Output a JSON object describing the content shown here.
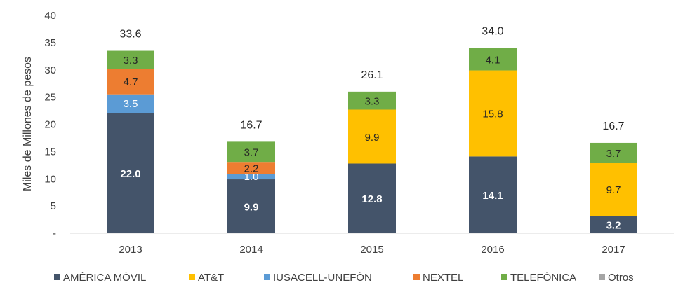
{
  "chart_data": {
    "type": "bar",
    "stacked": true,
    "ylabel": "Miles de Millones de pesos",
    "ylim": [
      0,
      40
    ],
    "yticks": [
      0,
      5,
      10,
      15,
      20,
      25,
      30,
      35,
      40
    ],
    "ytick_labels": [
      "-",
      "5",
      "10",
      "15",
      "20",
      "25",
      "30",
      "35",
      "40"
    ],
    "categories": [
      "2013",
      "2014",
      "2015",
      "2016",
      "2017"
    ],
    "series": [
      {
        "name": "AMÉRICA MÓVIL",
        "color": "#44546A",
        "values": [
          22.0,
          9.9,
          12.8,
          14.1,
          3.2
        ],
        "labels": [
          "22.0",
          "9.9",
          "12.8",
          "14.1",
          "3.2"
        ]
      },
      {
        "name": "AT&T",
        "color": "#FFC000",
        "values": [
          0,
          0,
          9.9,
          15.8,
          9.7
        ],
        "labels": [
          "",
          "",
          "9.9",
          "15.8",
          "9.7"
        ]
      },
      {
        "name": "IUSACELL-UNEFÓN",
        "color": "#5B9BD5",
        "values": [
          3.5,
          1.0,
          0,
          0,
          0
        ],
        "labels": [
          "3.5",
          "1.0",
          "",
          "",
          ""
        ]
      },
      {
        "name": "NEXTEL",
        "color": "#ED7D31",
        "values": [
          4.7,
          2.2,
          0,
          0,
          0
        ],
        "labels": [
          "4.7",
          "2.2",
          "",
          "",
          ""
        ]
      },
      {
        "name": "TELEFÓNICA",
        "color": "#70AD47",
        "values": [
          3.3,
          3.7,
          3.3,
          4.1,
          3.7
        ],
        "labels": [
          "3.3",
          "3.7",
          "3.3",
          "4.1",
          "3.7"
        ]
      },
      {
        "name": "Otros",
        "color": "#A5A5A5",
        "values": [
          0,
          0,
          0,
          0,
          0
        ],
        "labels": [
          "",
          "",
          "",
          "",
          ""
        ]
      }
    ],
    "totals": [
      "33.6",
      "16.7",
      "26.1",
      "34.0",
      "16.7"
    ],
    "legend": "bottom",
    "grid": false
  }
}
